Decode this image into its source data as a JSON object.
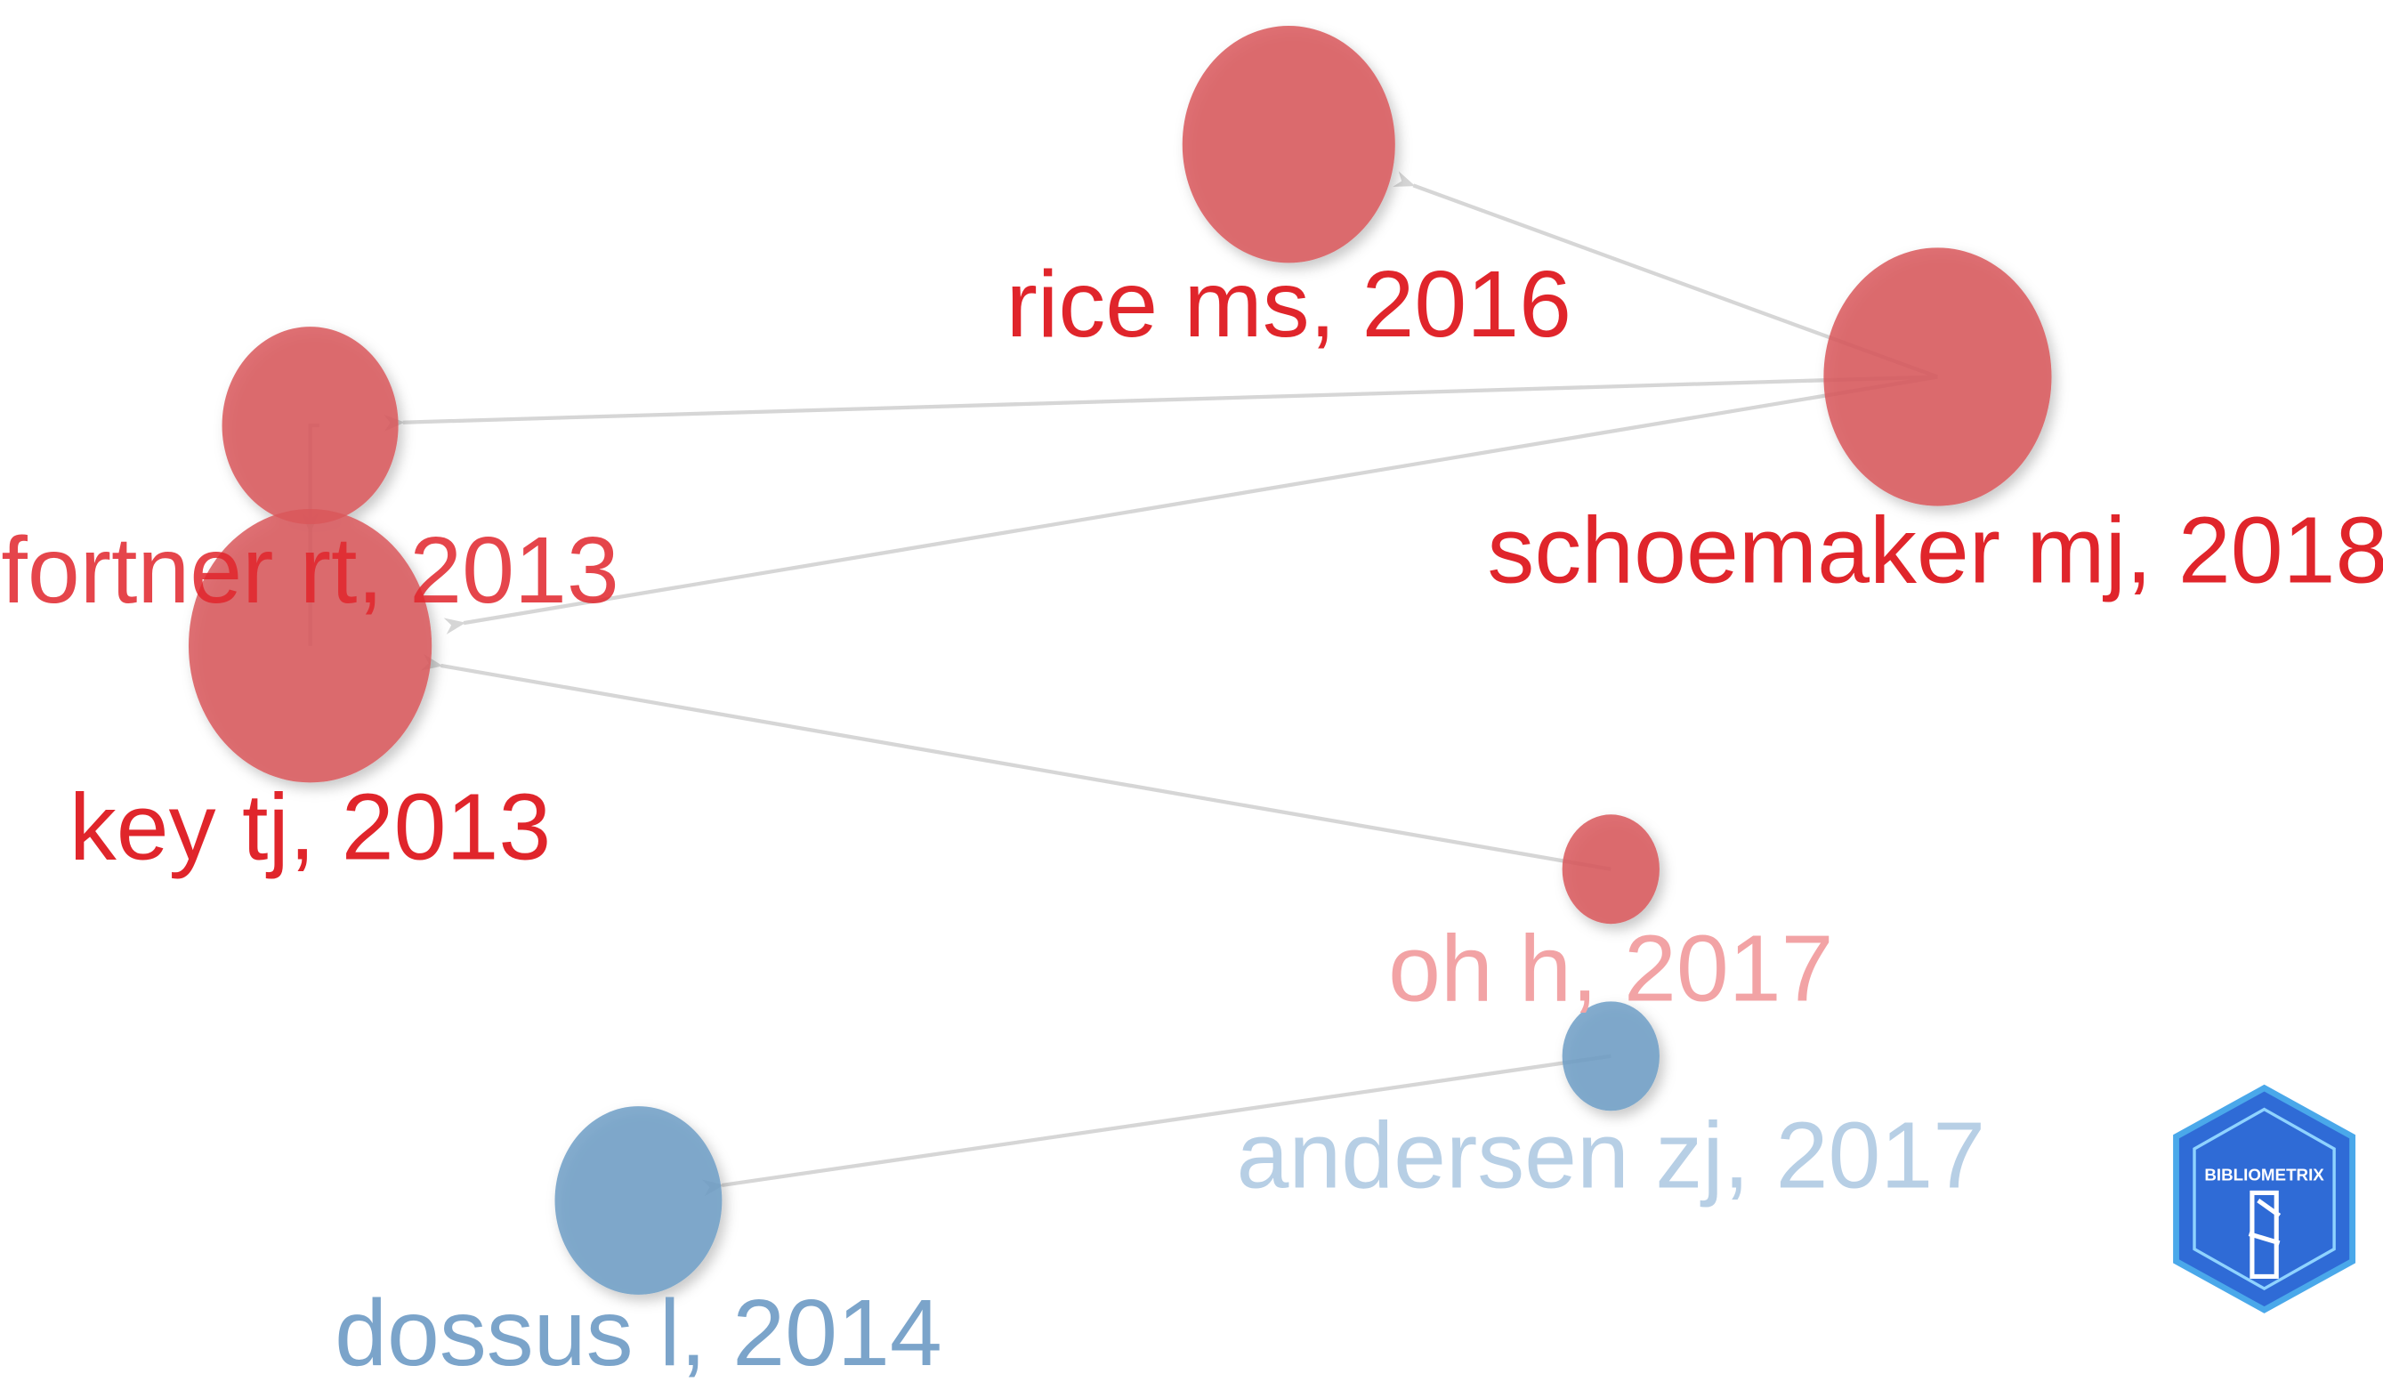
{
  "nodes": [
    {
      "label": "rice ms, 2016"
    },
    {
      "label": "schoemaker mj, 2018"
    },
    {
      "label": "fortner rt, 2013"
    },
    {
      "label": "key tj, 2013"
    },
    {
      "label": "oh h, 2017"
    },
    {
      "label": "andersen zj, 2017"
    },
    {
      "label": "dossus l, 2014"
    }
  ],
  "logo": {
    "text": "BIBLIOMETRIX"
  }
}
